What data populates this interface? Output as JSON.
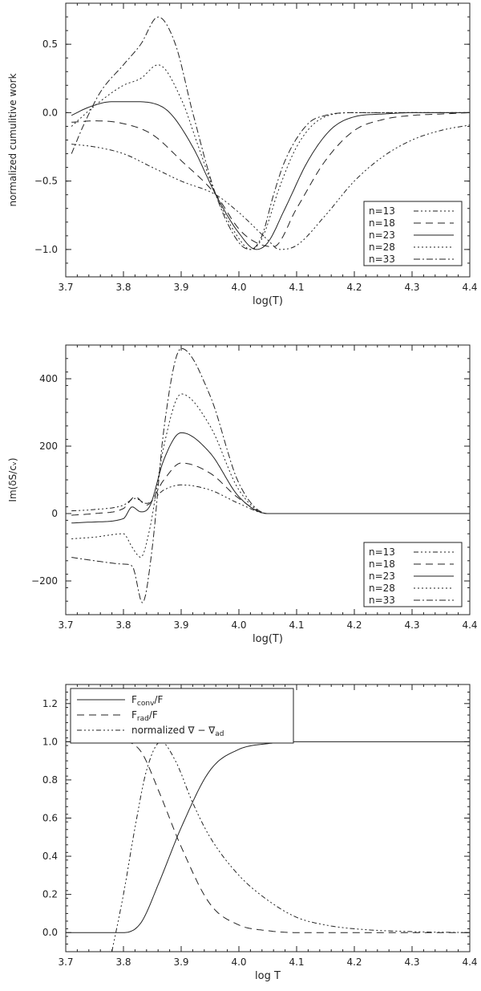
{
  "chart_data": [
    {
      "type": "line",
      "xlabel": "log(T)",
      "ylabel": "normalized cumulitive work",
      "xlim": [
        3.7,
        4.4
      ],
      "ylim": [
        -1.2,
        0.8
      ],
      "xticks": [
        3.7,
        3.8,
        3.9,
        4.0,
        4.1,
        4.2,
        4.3,
        4.4
      ],
      "xticklabels": [
        "3.7",
        "3.8",
        "3.9",
        "4.0",
        "4.1",
        "4.2",
        "4.3",
        "4.4"
      ],
      "yticks": [
        -1.0,
        -0.5,
        0.0,
        0.5
      ],
      "yticklabels": [
        "−1.0",
        "−0.5",
        "0.0",
        "0.5"
      ],
      "grid": false,
      "legend": "bottom-right",
      "series": [
        {
          "name": "n=13",
          "dash": "6 3 2 3 2 3 2 3",
          "x": [
            3.71,
            3.75,
            3.8,
            3.85,
            3.9,
            3.96,
            4.0,
            4.05,
            4.07,
            4.1,
            4.15,
            4.2,
            4.25,
            4.3,
            4.35,
            4.4
          ],
          "y": [
            -0.23,
            -0.25,
            -0.3,
            -0.4,
            -0.5,
            -0.6,
            -0.73,
            -0.93,
            -1.0,
            -0.97,
            -0.75,
            -0.5,
            -0.32,
            -0.2,
            -0.13,
            -0.09
          ]
        },
        {
          "name": "n=18",
          "dash": "9 6",
          "x": [
            3.71,
            3.75,
            3.8,
            3.85,
            3.9,
            3.96,
            4.0,
            4.03,
            4.06,
            4.1,
            4.15,
            4.2,
            4.25,
            4.3,
            4.35,
            4.4
          ],
          "y": [
            -0.07,
            -0.06,
            -0.08,
            -0.16,
            -0.35,
            -0.6,
            -0.85,
            -0.95,
            -0.98,
            -0.7,
            -0.35,
            -0.13,
            -0.05,
            -0.02,
            -0.01,
            0.0
          ]
        },
        {
          "name": "n=23",
          "dash": "",
          "x": [
            3.71,
            3.74,
            3.78,
            3.82,
            3.85,
            3.88,
            3.92,
            3.96,
            4.0,
            4.03,
            4.05,
            4.08,
            4.12,
            4.16,
            4.2,
            4.25,
            4.3,
            4.35,
            4.4
          ],
          "y": [
            -0.02,
            0.04,
            0.08,
            0.08,
            0.07,
            0.0,
            -0.25,
            -0.6,
            -0.88,
            -1.0,
            -0.95,
            -0.7,
            -0.35,
            -0.12,
            -0.03,
            -0.01,
            0.0,
            0.0,
            0.0
          ]
        },
        {
          "name": "n=28",
          "dash": "2 3",
          "x": [
            3.71,
            3.75,
            3.8,
            3.83,
            3.86,
            3.9,
            3.93,
            3.96,
            4.0,
            4.02,
            4.04,
            4.07,
            4.1,
            4.14,
            4.2,
            4.3,
            4.4
          ],
          "y": [
            -0.1,
            0.05,
            0.2,
            0.25,
            0.35,
            0.1,
            -0.25,
            -0.6,
            -0.92,
            -1.0,
            -0.92,
            -0.55,
            -0.25,
            -0.05,
            0.0,
            0.0,
            0.0
          ]
        },
        {
          "name": "n=33",
          "dash": "8 3 2 3",
          "x": [
            3.71,
            3.73,
            3.76,
            3.8,
            3.83,
            3.86,
            3.89,
            3.92,
            3.96,
            4.0,
            4.02,
            4.04,
            4.06,
            4.08,
            4.12,
            4.15,
            4.2,
            4.3,
            4.4
          ],
          "y": [
            -0.3,
            -0.1,
            0.15,
            0.35,
            0.5,
            0.7,
            0.5,
            0.0,
            -0.6,
            -0.95,
            -1.0,
            -0.9,
            -0.6,
            -0.35,
            -0.08,
            -0.02,
            0.0,
            0.0,
            0.0
          ]
        }
      ]
    },
    {
      "type": "line",
      "xlabel": "log(T)",
      "ylabel": "Im(δS/cᵥ)",
      "xlim": [
        3.7,
        4.4
      ],
      "ylim": [
        -300,
        500
      ],
      "xticks": [
        3.7,
        3.8,
        3.9,
        4.0,
        4.1,
        4.2,
        4.3,
        4.4
      ],
      "xticklabels": [
        "3.7",
        "3.8",
        "3.9",
        "4.0",
        "4.1",
        "4.2",
        "4.3",
        "4.4"
      ],
      "yticks": [
        -200,
        0,
        200,
        400
      ],
      "yticklabels": [
        "−200",
        "0",
        "200",
        "400"
      ],
      "grid": false,
      "legend": "bottom-right",
      "series": [
        {
          "name": "n=13",
          "dash": "6 3 2 3 2 3 2 3",
          "x": [
            3.71,
            3.75,
            3.8,
            3.82,
            3.84,
            3.87,
            3.9,
            3.95,
            4.0,
            4.05,
            4.1,
            4.4
          ],
          "y": [
            8,
            12,
            25,
            45,
            30,
            70,
            85,
            70,
            30,
            0,
            0,
            0
          ]
        },
        {
          "name": "n=18",
          "dash": "9 6",
          "x": [
            3.71,
            3.75,
            3.8,
            3.82,
            3.84,
            3.87,
            3.9,
            3.95,
            4.0,
            4.05,
            4.1,
            4.4
          ],
          "y": [
            -5,
            0,
            15,
            50,
            25,
            100,
            150,
            120,
            45,
            0,
            0,
            0
          ]
        },
        {
          "name": "n=23",
          "dash": "",
          "x": [
            3.71,
            3.75,
            3.8,
            3.815,
            3.83,
            3.845,
            3.87,
            3.9,
            3.95,
            4.0,
            4.05,
            4.1,
            4.4
          ],
          "y": [
            -28,
            -25,
            -15,
            20,
            5,
            20,
            160,
            240,
            180,
            50,
            0,
            0,
            0
          ]
        },
        {
          "name": "n=28",
          "dash": "2 3",
          "x": [
            3.71,
            3.75,
            3.8,
            3.815,
            3.83,
            3.845,
            3.87,
            3.9,
            3.95,
            4.0,
            4.05,
            4.1,
            4.4
          ],
          "y": [
            -75,
            -70,
            -60,
            -100,
            -130,
            -50,
            200,
            355,
            260,
            70,
            0,
            0,
            0
          ]
        },
        {
          "name": "n=33",
          "dash": "8 3 2 3",
          "x": [
            3.71,
            3.75,
            3.8,
            3.815,
            3.833,
            3.85,
            3.87,
            3.9,
            3.95,
            4.0,
            4.05,
            4.1,
            4.4
          ],
          "y": [
            -130,
            -140,
            -150,
            -155,
            -265,
            -100,
            250,
            490,
            350,
            90,
            0,
            0,
            0
          ]
        }
      ]
    },
    {
      "type": "line",
      "xlabel": "log T",
      "ylabel": "",
      "xlim": [
        3.7,
        4.4
      ],
      "ylim": [
        -0.1,
        1.3
      ],
      "xticks": [
        3.7,
        3.8,
        3.9,
        4.0,
        4.1,
        4.2,
        4.3,
        4.4
      ],
      "xticklabels": [
        "3.7",
        "3.8",
        "3.9",
        "4.0",
        "4.1",
        "4.2",
        "4.3",
        "4.4"
      ],
      "yticks": [
        0.0,
        0.2,
        0.4,
        0.6,
        0.8,
        1.0,
        1.2
      ],
      "yticklabels": [
        "0.0",
        "0.2",
        "0.4",
        "0.6",
        "0.8",
        "1.0",
        "1.2"
      ],
      "grid": false,
      "legend": "top-left",
      "legend_entries": [
        {
          "main": "F",
          "sub": "conv",
          "after": "/F",
          "dash": ""
        },
        {
          "main": "F",
          "sub": "rad",
          "after": "/F",
          "dash": "9 6"
        },
        {
          "main": "normalized ∇ − ∇",
          "sub": "ad",
          "after": "",
          "dash": "6 3 2 3 2 3 2 3"
        }
      ],
      "series": [
        {
          "name": "Fconv/F",
          "dash": "",
          "x": [
            3.7,
            3.8,
            3.83,
            3.86,
            3.9,
            3.95,
            4.0,
            4.05,
            4.1,
            4.2,
            4.3,
            4.4
          ],
          "y": [
            0.0,
            0.0,
            0.05,
            0.25,
            0.55,
            0.85,
            0.96,
            0.99,
            1.0,
            1.0,
            1.0,
            1.0
          ]
        },
        {
          "name": "Frad/F",
          "dash": "9 6",
          "x": [
            3.7,
            3.8,
            3.83,
            3.86,
            3.9,
            3.95,
            4.0,
            4.05,
            4.1,
            4.2,
            4.3,
            4.4
          ],
          "y": [
            1.0,
            1.0,
            0.95,
            0.75,
            0.45,
            0.15,
            0.04,
            0.01,
            0.0,
            0.0,
            0.0,
            0.0
          ]
        },
        {
          "name": "normalized ∇ − ∇ad",
          "dash": "6 3 2 3 2 3 2 3",
          "x": [
            3.78,
            3.8,
            3.82,
            3.84,
            3.865,
            3.89,
            3.92,
            3.95,
            4.0,
            4.05,
            4.1,
            4.15,
            4.2,
            4.3,
            4.4
          ],
          "y": [
            -0.1,
            0.2,
            0.55,
            0.85,
            1.0,
            0.9,
            0.68,
            0.5,
            0.3,
            0.17,
            0.08,
            0.04,
            0.02,
            0.005,
            0.0
          ]
        }
      ]
    }
  ]
}
